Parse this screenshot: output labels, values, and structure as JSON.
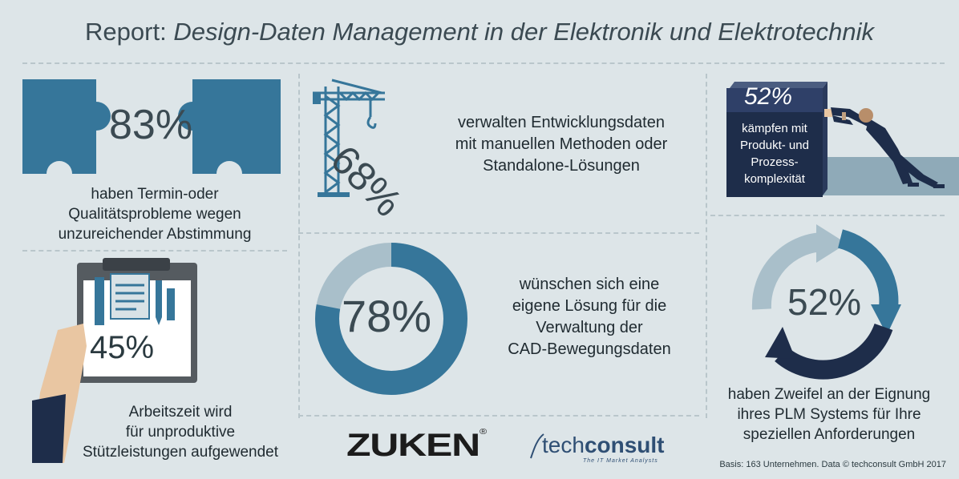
{
  "header": {
    "title_prefix": "Report:",
    "title_italic": "Design-Daten Management in der Elektronik und Elektrotechnik"
  },
  "stats": {
    "s1": {
      "value": "83%",
      "text": [
        "haben Termin-oder",
        "Qualitätsprobleme wegen",
        "unzureichender Abstimmung"
      ]
    },
    "s2": {
      "value": "68%",
      "text": [
        "verwalten Entwicklungsdaten",
        "mit manuellen Methoden oder",
        "Standalone-Lösungen"
      ]
    },
    "s3": {
      "value": "52%",
      "text": [
        "kämpfen mit",
        "Produkt- und",
        "Prozess-",
        "komplexität"
      ]
    },
    "s4": {
      "value": "45%",
      "text": [
        "Arbeitszeit wird",
        "für unproduktive",
        "Stützleistungen aufgewendet"
      ]
    },
    "s5": {
      "value": "78%",
      "fraction": 0.78,
      "text": [
        "wünschen sich eine",
        "eigene Lösung für die",
        "Verwaltung der",
        "CAD-Bewegungsdaten"
      ]
    },
    "s6": {
      "value": "52%",
      "text": [
        "haben Zweifel an der Eignung",
        "ihres PLM Systems für Ihre",
        "speziellen Anforderungen"
      ]
    }
  },
  "logos": {
    "zuken": "ZUKEN",
    "zuken_reg": "®",
    "techconsult_a": "tech",
    "techconsult_b": "consult",
    "techconsult_sub": "The IT Market Analysts"
  },
  "footer": "Basis: 163 Unternehmen. Data © techconsult GmbH 2017",
  "colors": {
    "background": "#dde5e8",
    "primary_blue": "#36769a",
    "light_blue": "#a9bfca",
    "dark_navy": "#1e2d4a",
    "text_grey": "#3b4a52"
  }
}
